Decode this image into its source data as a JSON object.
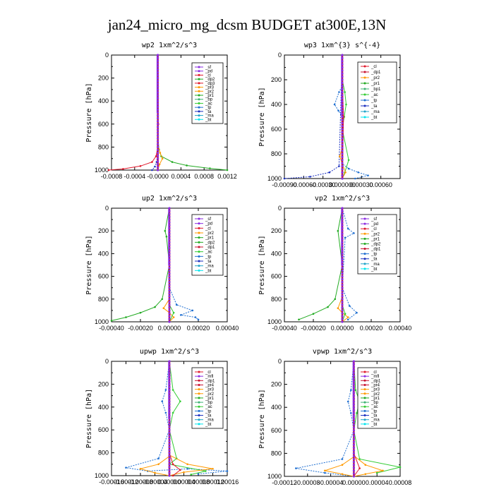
{
  "title": "jan24_micro_mg_dcsm  BUDGET at300E,13N",
  "colors": {
    "_sf": "#8a2be2",
    "_pd": "#8a2be2",
    "_cl": "#e0182b",
    "_mfl": "#8a2be2",
    "_dp1": "#c8102e",
    "_dp2": "#22aa22",
    "_dp3": "#e0182b",
    "_pr1": "#22aa22",
    "_pr2": "#ff9900",
    "_pr3": "#ff9900",
    "_pr4": "#c8102e",
    "_bp": "#3cb371",
    "_bp1": "#3cb371",
    "_ac": "#33cc33",
    "_tp": "#1f6fd1",
    "_ta": "#1a2fbf",
    "_ma": "#1fa3c9",
    "_bt": "#00e5ee"
  },
  "chart_data": [
    {
      "type": "line",
      "title": "wp2  1xm^2/s^3",
      "ylabel": "Pressure [hPa]",
      "ylim": [
        1000,
        0
      ],
      "yticks": [
        0,
        200,
        400,
        600,
        800,
        1000
      ],
      "xlim": [
        -0.0008,
        0.0012
      ],
      "xticks": [
        "-0.0008",
        "-0.0004",
        "-0.0000",
        "0.0004",
        "0.0008",
        "0.0012"
      ],
      "xtick_values": [
        -0.0008,
        -0.0004,
        0,
        0.0004,
        0.0008,
        0.0012
      ],
      "legend": [
        "_sf",
        "_pd",
        "_cl",
        "_dp2",
        "_dp3",
        "_pr3",
        "_pr2",
        "_pr1",
        "_bp",
        "_ac",
        "_tp",
        "_ta",
        "_ma",
        "_bt"
      ],
      "series": [
        {
          "name": "_dp2",
          "x": [
            0,
            0,
            2e-05,
            6e-05,
            0.00025,
            0.0005,
            0.0009,
            0.0012
          ],
          "y": [
            0,
            700,
            820,
            880,
            930,
            960,
            985,
            1000
          ]
        },
        {
          "name": "_pr2",
          "x": [
            0,
            0,
            4e-05,
            8e-05,
            3e-05,
            0
          ],
          "y": [
            0,
            780,
            850,
            900,
            950,
            1000
          ]
        },
        {
          "name": "_dp3",
          "x": [
            0,
            0,
            -3e-05,
            -0.0001,
            -0.0003,
            -0.0006,
            -0.00085
          ],
          "y": [
            0,
            800,
            880,
            930,
            965,
            990,
            1000
          ]
        },
        {
          "name": "_ta",
          "x": [
            0,
            0,
            -2e-05,
            -5e-05,
            -0.0001
          ],
          "y": [
            0,
            850,
            930,
            970,
            1000
          ]
        },
        {
          "name": "_cl",
          "x": [
            0,
            0,
            1e-05,
            0
          ],
          "y": [
            0,
            200,
            600,
            1000
          ]
        },
        {
          "name": "_sf",
          "x": [
            0,
            0
          ],
          "y": [
            0,
            1000
          ]
        }
      ]
    },
    {
      "type": "line",
      "title": "wp3  1xm^{3} s^{-4}",
      "ylabel": "Pressure [hPa]",
      "ylim": [
        1000,
        0
      ],
      "yticks": [
        0,
        200,
        400,
        600,
        800,
        1000
      ],
      "xlim": [
        -0.0009,
        0.0009
      ],
      "xticks": [
        "-0.00090",
        "-0.00060",
        "-0.00030",
        "0.000000",
        "0.00030",
        "0.00060"
      ],
      "xtick_values": [
        -0.0009,
        -0.0006,
        -0.0003,
        0,
        0.0003,
        0.0006
      ],
      "legend": [
        "_cl",
        "_dp1",
        "_pr2",
        "_pr1",
        "_bp1",
        "_ac",
        "_tp",
        "_ta",
        "_ma",
        "_bt"
      ],
      "series": [
        {
          "name": "_tp",
          "x": [
            0,
            0,
            -5e-05,
            -0.00012,
            -6e-05,
            0,
            0,
            0.0001,
            0.00025,
            0.0004,
            0.0002
          ],
          "y": [
            0,
            250,
            300,
            400,
            450,
            500,
            880,
            920,
            950,
            975,
            1000
          ]
        },
        {
          "name": "_ta",
          "x": [
            0,
            -5e-05,
            -0.0002,
            -0.0005,
            -0.0009
          ],
          "y": [
            0,
            900,
            950,
            985,
            1000
          ]
        },
        {
          "name": "_ac",
          "x": [
            0,
            0,
            4e-05,
            6e-05,
            3e-05,
            0,
            0.0001,
            4e-05,
            0
          ],
          "y": [
            0,
            200,
            300,
            400,
            500,
            600,
            850,
            950,
            1000
          ]
        },
        {
          "name": "_pr2",
          "x": [
            0,
            0,
            -4e-05,
            0,
            5e-05,
            0
          ],
          "y": [
            0,
            750,
            820,
            880,
            950,
            1000
          ]
        },
        {
          "name": "_cl",
          "x": [
            0,
            0,
            2e-05,
            0
          ],
          "y": [
            0,
            200,
            500,
            1000
          ]
        },
        {
          "name": "_dp1",
          "x": [
            0,
            0
          ],
          "y": [
            0,
            1000
          ]
        }
      ]
    },
    {
      "type": "line",
      "title": "up2  1xm^2/s^3",
      "ylabel": "Pressure [hPa]",
      "ylim": [
        1000,
        0
      ],
      "yticks": [
        0,
        200,
        400,
        600,
        800,
        1000
      ],
      "xlim": [
        -0.0004,
        0.0004
      ],
      "xticks": [
        "-0.00040",
        "-0.00020",
        "0.00000",
        "0.00020",
        "0.00040"
      ],
      "xtick_values": [
        -0.0004,
        -0.0002,
        0,
        0.0002,
        0.0004
      ],
      "legend": [
        "_sf",
        "_pd",
        "_cl",
        "_pr2",
        "_pr1",
        "_dp2",
        "_dp1",
        "_ac",
        "_tp",
        "_ta",
        "_ma",
        "_bt"
      ],
      "series": [
        {
          "name": "_dp2",
          "x": [
            0,
            -3e-05,
            -2e-05,
            0,
            -5e-05,
            -0.0001,
            -0.0002,
            -0.0003,
            -0.0004
          ],
          "y": [
            0,
            200,
            250,
            500,
            800,
            870,
            920,
            960,
            990
          ]
        },
        {
          "name": "_tp",
          "x": [
            0,
            0,
            5e-05,
            0.00016,
            8e-05,
            0.00018,
            0.0002
          ],
          "y": [
            0,
            700,
            850,
            900,
            940,
            960,
            980
          ]
        },
        {
          "name": "_pr2",
          "x": [
            0,
            0,
            -4e-05,
            0,
            3e-05,
            0
          ],
          "y": [
            0,
            800,
            880,
            920,
            960,
            1000
          ]
        },
        {
          "name": "_ac",
          "x": [
            0,
            0,
            3e-05,
            0
          ],
          "y": [
            0,
            850,
            920,
            1000
          ]
        },
        {
          "name": "_cl",
          "x": [
            0,
            0
          ],
          "y": [
            0,
            1000
          ]
        }
      ]
    },
    {
      "type": "line",
      "title": "vp2  1xm^2/s^3",
      "ylabel": "Pressure [hPa]",
      "ylim": [
        1000,
        0
      ],
      "yticks": [
        0,
        200,
        400,
        600,
        800,
        1000
      ],
      "xlim": [
        -0.0004,
        0.0004
      ],
      "xticks": [
        "-0.00040",
        "-0.00020",
        "0.00000",
        "0.00020",
        "0.00040"
      ],
      "xtick_values": [
        -0.0004,
        -0.0002,
        0,
        0.0002,
        0.0004
      ],
      "legend": [
        "_sf",
        "_pd",
        "_cl",
        "_pr2",
        "_pr1",
        "_dp2",
        "_dp1",
        "_tp",
        "_ta",
        "_ma",
        "_bt"
      ],
      "series": [
        {
          "name": "_dp2",
          "x": [
            0,
            -3e-05,
            0,
            -5e-05,
            -0.0001,
            -0.0002,
            -0.0003
          ],
          "y": [
            0,
            200,
            500,
            800,
            870,
            930,
            980
          ]
        },
        {
          "name": "_tp",
          "x": [
            0,
            4e-05,
            8e-05,
            2e-05,
            0,
            5e-05,
            0.0001,
            4e-05
          ],
          "y": [
            0,
            180,
            220,
            260,
            700,
            860,
            920,
            980
          ]
        },
        {
          "name": "_pr2",
          "x": [
            0,
            0,
            -3e-05,
            0,
            4e-05,
            0
          ],
          "y": [
            0,
            780,
            880,
            920,
            960,
            1000
          ]
        },
        {
          "name": "_ac",
          "x": [
            0,
            0,
            2e-05,
            0
          ],
          "y": [
            0,
            850,
            930,
            1000
          ]
        },
        {
          "name": "_cl",
          "x": [
            0,
            0
          ],
          "y": [
            0,
            1000
          ]
        }
      ]
    },
    {
      "type": "line",
      "title": "upwp  1xm^2/s^3",
      "ylabel": "Pressure [hPa]",
      "ylim": [
        1000,
        0
      ],
      "yticks": [
        0,
        200,
        400,
        600,
        800,
        1000
      ],
      "xlim": [
        -0.00016,
        0.00016
      ],
      "xticks": [
        "-0.00016",
        "-0.00012",
        "-0.00008",
        "-0.00004",
        "0.00000",
        "0.00004",
        "0.00008",
        "0.00012",
        "0.00016"
      ],
      "xtick_values": [
        -0.00016,
        -0.00012,
        -8e-05,
        -4e-05,
        0,
        4e-05,
        8e-05,
        0.00012,
        0.00016
      ],
      "legend": [
        "_cl",
        "_mfl",
        "_dp1",
        "_pr4",
        "_pr3",
        "_pr2",
        "_pr1",
        "_bp",
        "_ac",
        "_tp",
        "_ta",
        "_ma",
        "_bt"
      ],
      "series": [
        {
          "name": "_tp",
          "x": [
            0,
            -1e-05,
            -2e-05,
            -1e-05,
            0,
            -3e-05,
            -0.00012,
            -6e-05,
            5e-05,
            0.00016,
            8e-05
          ],
          "y": [
            0,
            250,
            350,
            450,
            600,
            850,
            930,
            960,
            940,
            960,
            985
          ]
        },
        {
          "name": "_ac",
          "x": [
            0,
            1e-05,
            3e-05,
            1e-05,
            0,
            2e-05,
            0,
            0.0001,
            6e-05
          ],
          "y": [
            0,
            250,
            350,
            450,
            600,
            850,
            900,
            960,
            990
          ]
        },
        {
          "name": "_pr3",
          "x": [
            0,
            0,
            5e-05,
            0.00012,
            4e-05,
            0
          ],
          "y": [
            0,
            820,
            900,
            940,
            970,
            1000
          ]
        },
        {
          "name": "_pr2",
          "x": [
            0,
            0,
            -3e-05,
            -8e-05,
            -4e-05,
            0
          ],
          "y": [
            0,
            830,
            900,
            940,
            975,
            1000
          ]
        },
        {
          "name": "_cl",
          "x": [
            0,
            0,
            1e-05,
            3e-05,
            1e-05
          ],
          "y": [
            0,
            800,
            900,
            950,
            1000
          ]
        },
        {
          "name": "_mfl",
          "x": [
            0,
            0
          ],
          "y": [
            0,
            1000
          ]
        }
      ]
    },
    {
      "type": "line",
      "title": "vpwp  1xm^2/s^3",
      "ylabel": "Pressure [hPa]",
      "ylim": [
        1000,
        0
      ],
      "yticks": [
        0,
        200,
        400,
        600,
        800,
        1000
      ],
      "xlim": [
        -0.00012,
        8e-05
      ],
      "xticks": [
        "-0.00012",
        "-0.00008",
        "-0.00004",
        "0.00000",
        "0.00004",
        "0.00008"
      ],
      "xtick_values": [
        -0.00012,
        -8e-05,
        -4e-05,
        0,
        4e-05,
        8e-05
      ],
      "legend": [
        "_cl",
        "_mfl",
        "_dp1",
        "_pr4",
        "_pr3",
        "_pr2",
        "_pr1",
        "_bp",
        "_ac",
        "_tp",
        "_ta",
        "_ma",
        "_bt"
      ],
      "series": [
        {
          "name": "_tp",
          "x": [
            0,
            -5e-06,
            -1e-05,
            -5e-06,
            0,
            -2e-05,
            -0.0001,
            -5e-05,
            0
          ],
          "y": [
            0,
            250,
            350,
            450,
            600,
            850,
            930,
            970,
            1000
          ]
        },
        {
          "name": "_ac",
          "x": [
            0,
            3e-06,
            1e-05,
            5e-06,
            0,
            1e-05,
            8e-05,
            4e-05
          ],
          "y": [
            0,
            250,
            350,
            450,
            600,
            850,
            920,
            970
          ]
        },
        {
          "name": "_pr3",
          "x": [
            0,
            0,
            2e-05,
            5e-05,
            2e-05,
            0
          ],
          "y": [
            0,
            820,
            900,
            950,
            980,
            1000
          ]
        },
        {
          "name": "_pr2",
          "x": [
            0,
            0,
            -2e-05,
            -5e-05,
            -2e-05,
            0
          ],
          "y": [
            0,
            830,
            900,
            950,
            980,
            1000
          ]
        },
        {
          "name": "_cl",
          "x": [
            0,
            0,
            1e-05,
            0
          ],
          "y": [
            0,
            800,
            930,
            1000
          ]
        },
        {
          "name": "_mfl",
          "x": [
            0,
            0
          ],
          "y": [
            0,
            1000
          ]
        }
      ]
    }
  ]
}
